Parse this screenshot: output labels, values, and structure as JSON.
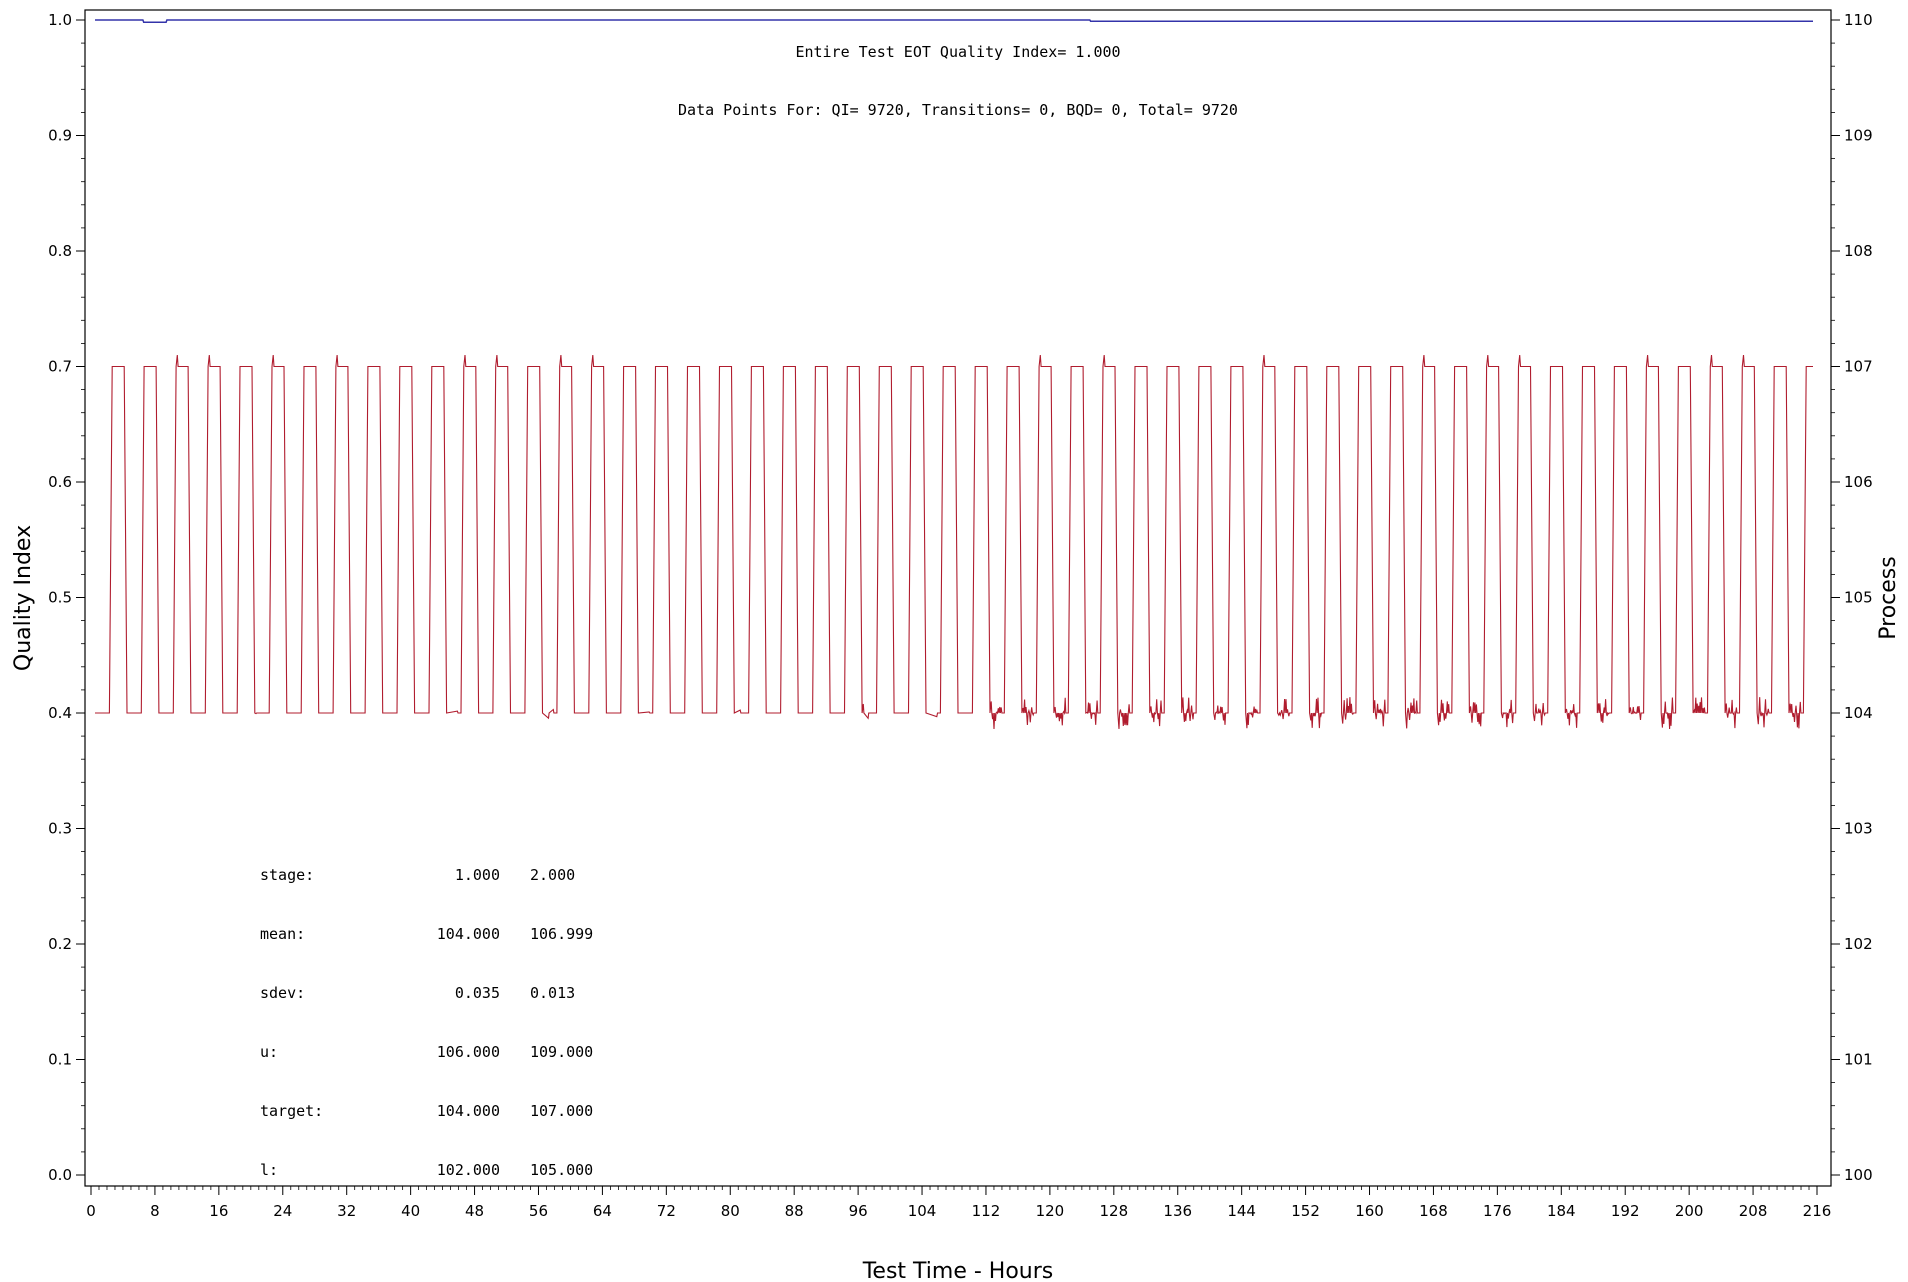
{
  "chart_data": {
    "type": "line",
    "xlabel": "Test Time - Hours",
    "ylabel_left": "Quality Index",
    "ylabel_right": "Process",
    "xlim": [
      0,
      216
    ],
    "ylim_left": [
      0.0,
      1.0
    ],
    "ylim_right": [
      100,
      110
    ],
    "x_ticks": [
      0,
      8,
      16,
      24,
      32,
      40,
      48,
      56,
      64,
      72,
      80,
      88,
      96,
      104,
      112,
      120,
      128,
      136,
      144,
      152,
      160,
      168,
      176,
      184,
      192,
      200,
      208,
      216
    ],
    "y_left_ticks": [
      "0.0",
      "0.1",
      "0.2",
      "0.3",
      "0.4",
      "0.5",
      "0.6",
      "0.7",
      "0.8",
      "0.9",
      "1.0"
    ],
    "y_right_ticks": [
      "100",
      "101",
      "102",
      "103",
      "104",
      "105",
      "106",
      "107",
      "108",
      "109",
      "110"
    ],
    "grid": false,
    "annotations": [
      "Entire Test EOT Quality Index=  1.000",
      "Data Points For: QI=  9720, Transitions=     0, BQD=     0, Total=  9720"
    ],
    "series": [
      {
        "axis": "left",
        "color": "#3333aa",
        "x": [
          0.5,
          6.5,
          6.6,
          9.4,
          9.5,
          125,
          125.1,
          215.5
        ],
        "y": [
          1.0,
          1.0,
          0.998,
          0.998,
          1.0,
          1.0,
          0.999,
          0.999
        ]
      },
      {
        "axis": "right",
        "color": "#b01c2e",
        "cycle_period_hours": 4,
        "low_value": 104.0,
        "high_value": 107.0,
        "x_start": 0.5,
        "x_end": 215.5,
        "stage_1_mean": 104.0,
        "stage_2_mean": 106.999
      }
    ],
    "stats_table": {
      "rows": [
        {
          "label": "stage:",
          "v1": "1.000",
          "v2": "2.000"
        },
        {
          "label": "mean:",
          "v1": "104.000",
          "v2": "106.999"
        },
        {
          "label": "sdev:",
          "v1": "0.035",
          "v2": "0.013"
        },
        {
          "label": "u:",
          "v1": "106.000",
          "v2": "109.000"
        },
        {
          "label": "target:",
          "v1": "104.000",
          "v2": "107.000"
        },
        {
          "label": "l:",
          "v1": "102.000",
          "v2": "105.000"
        }
      ]
    }
  }
}
